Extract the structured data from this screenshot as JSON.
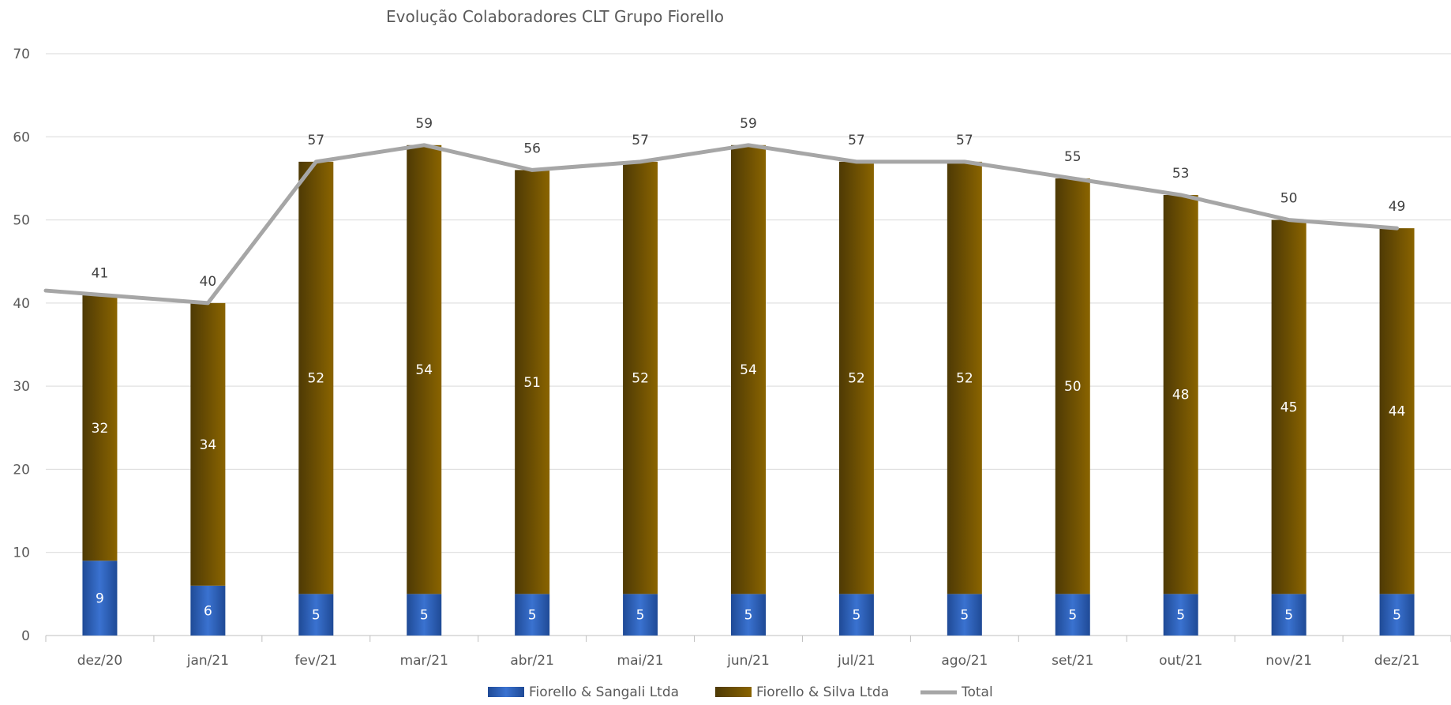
{
  "chart_data": {
    "type": "bar",
    "stacked": true,
    "title": "Evolução Colaboradores CLT Grupo Fiorello",
    "categories": [
      "dez/20",
      "jan/21",
      "fev/21",
      "mar/21",
      "abr/21",
      "mai/21",
      "jun/21",
      "jul/21",
      "ago/21",
      "set/21",
      "out/21",
      "nov/21",
      "dez/21"
    ],
    "ylim": [
      0,
      70
    ],
    "yticks": [
      0,
      10,
      20,
      30,
      40,
      50,
      60,
      70
    ],
    "grid": true,
    "legend_position": "bottom",
    "series": [
      {
        "name": "Fiorello & Sangali Ltda",
        "kind": "bar",
        "color": "#2E5FB8",
        "values": [
          9,
          6,
          5,
          5,
          5,
          5,
          5,
          5,
          5,
          5,
          5,
          5,
          5
        ]
      },
      {
        "name": "Fiorello & Silva Ltda",
        "kind": "bar",
        "color": "#7A5A00",
        "values": [
          32,
          34,
          52,
          54,
          51,
          52,
          54,
          52,
          52,
          50,
          48,
          45,
          44
        ]
      },
      {
        "name": "Total",
        "kind": "line",
        "color": "#A6A6A6",
        "values": [
          41,
          40,
          57,
          59,
          56,
          57,
          59,
          57,
          57,
          55,
          53,
          50,
          49
        ]
      }
    ]
  }
}
